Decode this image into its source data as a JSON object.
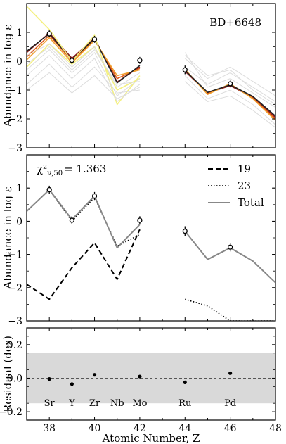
{
  "chart_data": [
    {
      "type": "line",
      "panel": "top",
      "star_label": "BD+6648",
      "ylabel": "Abundance in log ε",
      "xlim": [
        37,
        48
      ],
      "ylim": [
        -3,
        2
      ],
      "yticks": [
        "−3",
        "−2",
        "−1",
        "0",
        "1"
      ],
      "ytick_values": [
        -3,
        -2,
        -1,
        0,
        1
      ],
      "observed": [
        {
          "x": 38,
          "y": 0.95,
          "err": 0.12
        },
        {
          "x": 39,
          "y": 0.03,
          "err": 0.12
        },
        {
          "x": 40,
          "y": 0.76,
          "err": 0.12
        },
        {
          "x": 42,
          "y": 0.03,
          "err": 0.12
        },
        {
          "x": 44,
          "y": -0.3,
          "err": 0.15
        },
        {
          "x": 46,
          "y": -0.78,
          "err": 0.13
        }
      ],
      "series": [
        {
          "color": "#8b1a1a",
          "x": [
            37,
            38,
            39,
            40,
            41,
            42,
            null,
            44,
            45,
            46,
            47,
            48
          ],
          "y": [
            0.3,
            0.98,
            0.1,
            0.8,
            -0.72,
            -0.2,
            null,
            -0.35,
            -1.1,
            -0.85,
            -1.25,
            -1.95
          ]
        },
        {
          "color": "#e05a1a",
          "x": [
            37,
            38,
            39,
            40,
            41,
            42,
            null,
            44,
            45,
            46,
            47,
            48
          ],
          "y": [
            0.15,
            0.9,
            0.02,
            0.74,
            -0.6,
            -0.25,
            null,
            -0.3,
            -1.12,
            -0.8,
            -1.28,
            -2.0
          ]
        },
        {
          "color": "#f0a030",
          "x": [
            37,
            38,
            39,
            40,
            41,
            42,
            null,
            44,
            45,
            46,
            47,
            48
          ],
          "y": [
            0.05,
            0.82,
            -0.05,
            0.72,
            -0.5,
            -0.3,
            null,
            -0.28,
            -1.15,
            -0.78,
            -1.3,
            -2.05
          ]
        },
        {
          "color": "#222222",
          "x": [
            37,
            38,
            39,
            40,
            41,
            42,
            null,
            44,
            45,
            46,
            47,
            48
          ],
          "y": [
            0.35,
            0.95,
            0.05,
            0.78,
            -0.75,
            -0.15,
            null,
            -0.32,
            -1.08,
            -0.82,
            -1.22,
            -1.9
          ]
        },
        {
          "color": "#f4f080",
          "x": [
            37,
            38,
            39,
            40,
            41,
            42
          ],
          "y": [
            1.9,
            1.1,
            0.0,
            0.9,
            -1.5,
            -0.5
          ]
        },
        {
          "color": "#f4f080",
          "x": [
            37,
            38,
            39,
            40,
            41,
            42
          ],
          "y": [
            -0.2,
            0.6,
            -0.1,
            0.5,
            -1.0,
            -0.6
          ]
        },
        {
          "color": "#dcdcdc",
          "x": [
            37,
            38,
            39,
            40,
            41,
            42,
            null,
            44,
            45,
            46,
            47,
            48
          ],
          "y": [
            -0.3,
            0.4,
            -0.4,
            0.3,
            -1.2,
            -0.6,
            null,
            -0.2,
            -0.8,
            -0.4,
            -0.9,
            -1.4
          ]
        },
        {
          "color": "#dcdcdc",
          "x": [
            37,
            38,
            39,
            40,
            41,
            42,
            null,
            44,
            45,
            46,
            47,
            48
          ],
          "y": [
            -0.5,
            0.2,
            -0.6,
            0.1,
            -1.4,
            -0.8,
            null,
            0.1,
            -0.6,
            -0.2,
            -0.7,
            -1.2
          ]
        },
        {
          "color": "#dcdcdc",
          "x": [
            37,
            38,
            39,
            40,
            41,
            42,
            null,
            44,
            45,
            46,
            47,
            48
          ],
          "y": [
            -0.8,
            -0.1,
            -0.9,
            -0.2,
            -1.1,
            -1.0,
            null,
            0.3,
            -0.9,
            -0.6,
            -1.1,
            -1.6
          ]
        },
        {
          "color": "#dcdcdc",
          "x": [
            37,
            38,
            39,
            40,
            41,
            42,
            null,
            44,
            45,
            46,
            47,
            48
          ],
          "y": [
            0.2,
            0.6,
            -0.2,
            0.5,
            -0.9,
            -0.4,
            null,
            -0.5,
            -1.3,
            -1.0,
            -1.5,
            -2.2
          ]
        },
        {
          "color": "#dcdcdc",
          "x": [
            37,
            38,
            39,
            40,
            41,
            42,
            null,
            44,
            45,
            46,
            47,
            48
          ],
          "y": [
            -1.0,
            -0.4,
            -1.1,
            -0.5,
            -1.3,
            -0.9,
            null,
            -0.7,
            -1.4,
            -1.2,
            -1.7,
            -2.3
          ]
        },
        {
          "color": "#dcdcdc",
          "x": [
            37,
            38,
            39,
            40,
            41,
            42,
            null,
            44,
            45,
            46,
            47,
            48
          ],
          "y": [
            -0.1,
            0.5,
            -0.3,
            0.4,
            -0.8,
            -0.7,
            null,
            0.2,
            -0.5,
            -0.3,
            -1.0,
            -1.5
          ]
        }
      ]
    },
    {
      "type": "line",
      "panel": "middle",
      "chi2_prefix": "χ²",
      "chi2_sub": "ν,50",
      "chi2_value": "= 1.363",
      "ylabel": "Abundance in log ε",
      "xlim": [
        37,
        48
      ],
      "ylim": [
        -3,
        2
      ],
      "yticks": [
        "−3",
        "−2",
        "−1",
        "0",
        "1"
      ],
      "ytick_values": [
        -3,
        -2,
        -1,
        0,
        1
      ],
      "legend": [
        {
          "label": "19",
          "style": "dashed"
        },
        {
          "label": "23",
          "style": "dotted"
        },
        {
          "label": "Total",
          "style": "solid"
        }
      ],
      "observed": [
        {
          "x": 38,
          "y": 0.95,
          "err": 0.12
        },
        {
          "x": 39,
          "y": 0.03,
          "err": 0.12
        },
        {
          "x": 40,
          "y": 0.76,
          "err": 0.12
        },
        {
          "x": 42,
          "y": 0.03,
          "err": 0.12
        },
        {
          "x": 44,
          "y": -0.3,
          "err": 0.15
        },
        {
          "x": 46,
          "y": -0.78,
          "err": 0.13
        }
      ],
      "series": [
        {
          "name": "19",
          "style": "dashed",
          "x": [
            37,
            38,
            39,
            40,
            41,
            42
          ],
          "y": [
            -1.9,
            -2.35,
            -1.4,
            -0.65,
            -1.75,
            -0.25
          ]
        },
        {
          "name": "23",
          "style": "dotted",
          "x": [
            37,
            38,
            39,
            40,
            41,
            42,
            null,
            44,
            45,
            46,
            47,
            48
          ],
          "y": [
            0.3,
            0.95,
            0.0,
            0.72,
            -0.75,
            -0.4,
            null,
            -2.35,
            -2.55,
            -3.0,
            -3.0,
            -3.0
          ]
        },
        {
          "name": "Total",
          "style": "solid",
          "x": [
            37,
            38,
            39,
            40,
            41,
            42,
            null,
            44,
            45,
            46,
            47,
            48
          ],
          "y": [
            0.3,
            0.95,
            0.05,
            0.76,
            -0.8,
            -0.1,
            null,
            -0.3,
            -1.15,
            -0.8,
            -1.2,
            -1.85
          ]
        }
      ]
    },
    {
      "type": "scatter",
      "panel": "bottom",
      "ylabel": "Residual (dex)",
      "xlabel": "Atomic Number, Z",
      "xlim": [
        37,
        48
      ],
      "ylim": [
        -0.25,
        0.3
      ],
      "yticks": [
        "−0.2",
        "0.0",
        "0.2"
      ],
      "ytick_values": [
        -0.2,
        0.0,
        0.2
      ],
      "xticks": [
        "38",
        "40",
        "42",
        "44",
        "46",
        "48"
      ],
      "xtick_values": [
        38,
        40,
        42,
        44,
        46,
        48
      ],
      "band": [
        -0.15,
        0.15
      ],
      "elements": [
        {
          "symbol": "Sr",
          "x": 38
        },
        {
          "symbol": "Y",
          "x": 39
        },
        {
          "symbol": "Zr",
          "x": 40
        },
        {
          "symbol": "Nb",
          "x": 41
        },
        {
          "symbol": "Mo",
          "x": 42
        },
        {
          "symbol": "Ru",
          "x": 44
        },
        {
          "symbol": "Pd",
          "x": 46
        }
      ],
      "points": [
        {
          "x": 38,
          "y": -0.005
        },
        {
          "x": 39,
          "y": -0.035
        },
        {
          "x": 40,
          "y": 0.02
        },
        {
          "x": 42,
          "y": 0.01
        },
        {
          "x": 44,
          "y": -0.025
        },
        {
          "x": 46,
          "y": 0.03
        }
      ]
    }
  ]
}
